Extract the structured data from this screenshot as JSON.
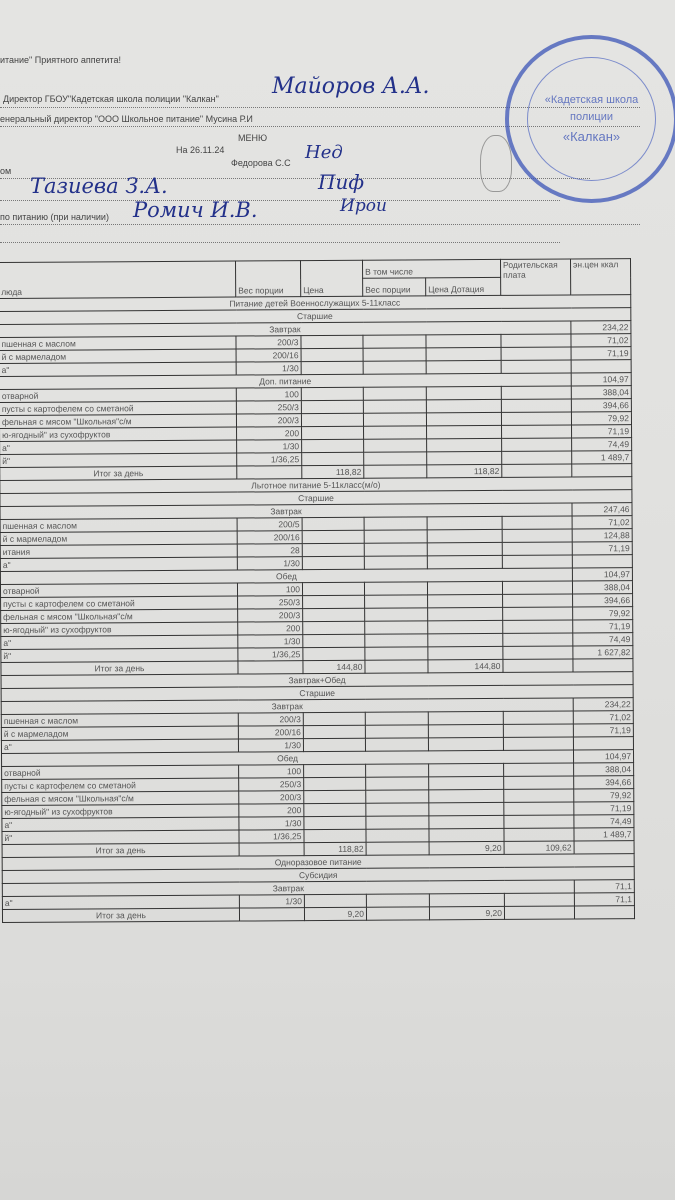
{
  "header": {
    "line1": "итание\" Приятного аппетита!",
    "director_label": "Директор ГБОУ\"Кадетская школа полиции \"Калкан\"",
    "director_signature": "Майоров А.А.",
    "general_director_label": "енеральный директор \"ООО Школьное питание\" Мусина Р.И",
    "menu_title": "МЕНЮ",
    "date": "На 26.11.24",
    "fedorova_label": "Федорова С.С",
    "fedorova_signature": "Нед",
    "row_om_label": "ом",
    "signature_2": "Тазиева З.А.",
    "signature_2_mark": "Пиф",
    "nutrition_label": "по питанию (при наличии)",
    "signature_3": "Ромич И.В.",
    "signature_3_mark": "Ирои"
  },
  "stamp": {
    "line1": "«Кадетская школа",
    "line2": "полиции",
    "line3": "«Калкан»",
    "color": "#3d56b8"
  },
  "table": {
    "columns": {
      "dish": "люда",
      "portion_weight": "Вес порции",
      "price": "Цена",
      "including": "В том числе",
      "sub_weight": "Вес порции",
      "sub_price": "Цена Дотация",
      "parent_fee": "Родительская плата",
      "energy": "эн.цен ккал"
    },
    "sections": [
      {
        "title": "Питание детей Военнослужащих 5-11класс",
        "group": "Старшие",
        "meals": [
          {
            "title": "Завтрак",
            "kcal": "234,22",
            "items": [
              {
                "name": "пшенная с маслом",
                "weight": "200/3",
                "kcal": "71,02"
              },
              {
                "name": "й с мармеладом",
                "weight": "200/16",
                "kcal": "71,19"
              },
              {
                "name": "а\"",
                "weight": "1/30",
                "kcal": ""
              }
            ]
          },
          {
            "title": "Доп. питание",
            "kcal": "104,97",
            "items": [
              {
                "name": "отварной",
                "weight": "100",
                "kcal": "388,04"
              },
              {
                "name": "пусты с картофелем со сметаной",
                "weight": "250/3",
                "kcal": "394,66"
              },
              {
                "name": "фельная с мясом \"Школьная\"с/м",
                "weight": "200/3",
                "kcal": "79,92"
              },
              {
                "name": "ю-ягодный\" из сухофруктов",
                "weight": "200",
                "kcal": "71,19"
              },
              {
                "name": "а\"",
                "weight": "1/30",
                "kcal": "74,49"
              },
              {
                "name": "й\"",
                "weight": "1/36,25",
                "kcal": "1 489,7"
              }
            ]
          }
        ],
        "total": {
          "label": "Итог за день",
          "price": "118,82",
          "sub_price": "118,82",
          "parent_fee": ""
        }
      },
      {
        "title": "Льготное питание 5-11класс(м/о)",
        "group": "Старшие",
        "meals": [
          {
            "title": "Завтрак",
            "kcal": "247,46",
            "items": [
              {
                "name": "пшенная с маслом",
                "weight": "200/5",
                "kcal": "71,02"
              },
              {
                "name": "й с мармеладом",
                "weight": "200/16",
                "kcal": "124,88"
              },
              {
                "name": "итания",
                "weight": "28",
                "kcal": "71,19"
              },
              {
                "name": "а\"",
                "weight": "1/30",
                "kcal": ""
              }
            ]
          },
          {
            "title": "Обед",
            "kcal": "104,97",
            "items": [
              {
                "name": "отварной",
                "weight": "100",
                "kcal": "388,04"
              },
              {
                "name": "пусты с картофелем со сметаной",
                "weight": "250/3",
                "kcal": "394,66"
              },
              {
                "name": "фельная с мясом \"Школьная\"с/м",
                "weight": "200/3",
                "kcal": "79,92"
              },
              {
                "name": "ю-ягодный\" из сухофруктов",
                "weight": "200",
                "kcal": "71,19"
              },
              {
                "name": "а\"",
                "weight": "1/30",
                "kcal": "74,49"
              },
              {
                "name": "й\"",
                "weight": "1/36,25",
                "kcal": "1 627,82"
              }
            ]
          }
        ],
        "total": {
          "label": "Итог за день",
          "price": "144,80",
          "sub_price": "144,80",
          "parent_fee": ""
        }
      },
      {
        "title": "Завтрак+Обед",
        "group": "Старшие",
        "meals": [
          {
            "title": "Завтрак",
            "kcal": "234,22",
            "items": [
              {
                "name": "пшенная с маслом",
                "weight": "200/3",
                "kcal": "71,02"
              },
              {
                "name": "й с мармеладом",
                "weight": "200/16",
                "kcal": "71,19"
              },
              {
                "name": "а\"",
                "weight": "1/30",
                "kcal": ""
              }
            ]
          },
          {
            "title": "Обед",
            "kcal": "104,97",
            "items": [
              {
                "name": "отварной",
                "weight": "100",
                "kcal": "388,04"
              },
              {
                "name": "пусты с картофелем со сметаной",
                "weight": "250/3",
                "kcal": "394,66"
              },
              {
                "name": "фельная с мясом \"Школьная\"с/м",
                "weight": "200/3",
                "kcal": "79,92"
              },
              {
                "name": "ю-ягодный\" из сухофруктов",
                "weight": "200",
                "kcal": "71,19"
              },
              {
                "name": "а\"",
                "weight": "1/30",
                "kcal": "74,49"
              },
              {
                "name": "й\"",
                "weight": "1/36,25",
                "kcal": "1 489,7"
              }
            ]
          }
        ],
        "total": {
          "label": "Итог за день",
          "price": "118,82",
          "sub_price": "9,20",
          "parent_fee": "109,62"
        }
      },
      {
        "title": "Одноразовое питание",
        "group": "Субсидия",
        "meals": [
          {
            "title": "Завтрак",
            "kcal": "71,1",
            "items": [
              {
                "name": "а\"",
                "weight": "1/30",
                "kcal": "71,1"
              }
            ]
          }
        ],
        "total": {
          "label": "Итог за день",
          "price": "9,20",
          "sub_price": "9,20",
          "parent_fee": ""
        }
      }
    ]
  }
}
